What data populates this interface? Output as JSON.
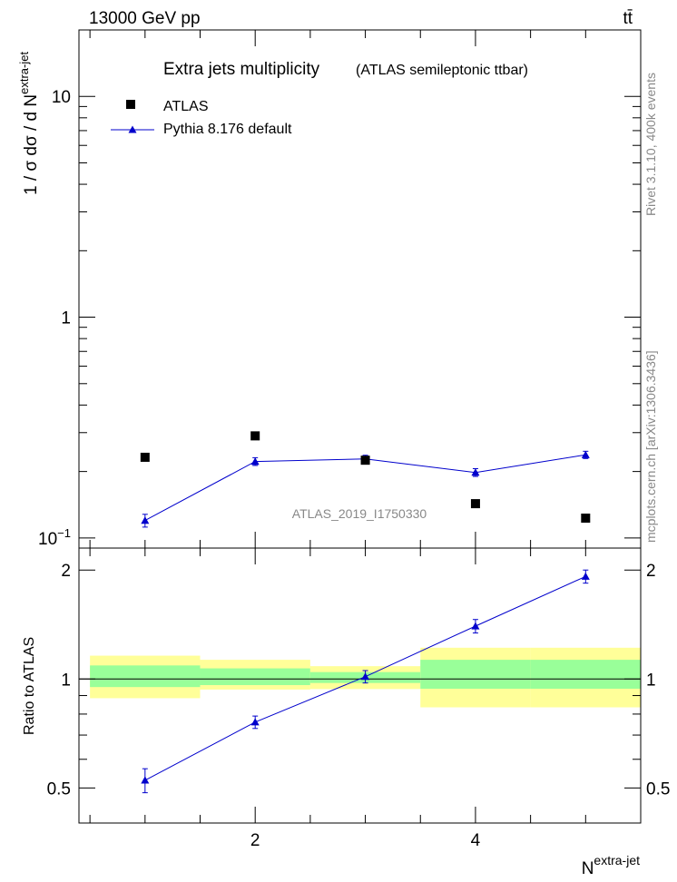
{
  "header": {
    "left": "13000 GeV pp",
    "right": "tt̄"
  },
  "side": {
    "rivet": "Rivet 3.1.10,  400k events",
    "mcplots": "mcplots.cern.ch [arXiv:1306.3436]"
  },
  "watermark": "ATLAS_2019_I1750330",
  "legend": {
    "data_label": "ATLAS",
    "mc_label": "Pythia 8.176 default"
  },
  "colors": {
    "data": "#000000",
    "mc": "#0000cc",
    "band_inner": "#99ff99",
    "band_outer": "#ffff99",
    "text_grey": "#888888"
  },
  "chart_data": [
    {
      "id": "main",
      "type": "scatter",
      "title": "Extra jets multiplicity",
      "subtitle": "(ATLAS semileptonic ttbar)",
      "ylabel": "1 / σ dσ / d N",
      "ylabel_sup": "extra-jet",
      "yscale": "log",
      "xlim": [
        0.4,
        5.5
      ],
      "ylim": [
        0.09,
        20
      ],
      "yticks": [
        {
          "v": 0.1,
          "label": "10",
          "sup": "−1"
        },
        {
          "v": 1,
          "label": "1",
          "sup": ""
        },
        {
          "v": 10,
          "label": "10",
          "sup": ""
        }
      ],
      "x": [
        1,
        2,
        3,
        4,
        5
      ],
      "series": [
        {
          "name": "ATLAS",
          "kind": "data",
          "values": [
            0.232,
            0.29,
            0.225,
            0.143,
            0.123
          ]
        },
        {
          "name": "Pythia 8.176 default",
          "kind": "mc",
          "values": [
            0.12,
            0.222,
            0.228,
            0.198,
            0.238
          ],
          "err": [
            0.008,
            0.009,
            0.009,
            0.008,
            0.009
          ]
        }
      ]
    },
    {
      "id": "ratio",
      "type": "line",
      "xlabel": "N",
      "xlabel_sup": "extra-jet",
      "ylabel": "Ratio to ATLAS",
      "xlim": [
        0.4,
        5.5
      ],
      "ylim": [
        0.4,
        2.3
      ],
      "yticks": [
        0.5,
        1,
        2
      ],
      "xticks": [
        2,
        4
      ],
      "bins": [
        [
          0.5,
          1.5
        ],
        [
          1.5,
          2.5
        ],
        [
          2.5,
          3.5
        ],
        [
          3.5,
          4.5
        ],
        [
          4.5,
          5.5
        ]
      ],
      "band_inner": [
        [
          0.95,
          1.09
        ],
        [
          0.962,
          1.07
        ],
        [
          0.975,
          1.045
        ],
        [
          0.94,
          1.13
        ],
        [
          0.94,
          1.13
        ]
      ],
      "band_outer": [
        [
          0.885,
          1.16
        ],
        [
          0.935,
          1.13
        ],
        [
          0.938,
          1.085
        ],
        [
          0.835,
          1.22
        ],
        [
          0.835,
          1.22
        ]
      ],
      "series": [
        {
          "name": "Pythia 8.176 default",
          "x": [
            1,
            2,
            3,
            4,
            5
          ],
          "values": [
            0.525,
            0.76,
            1.015,
            1.4,
            1.92
          ],
          "err": [
            0.04,
            0.03,
            0.04,
            0.06,
            0.08
          ]
        }
      ]
    }
  ]
}
